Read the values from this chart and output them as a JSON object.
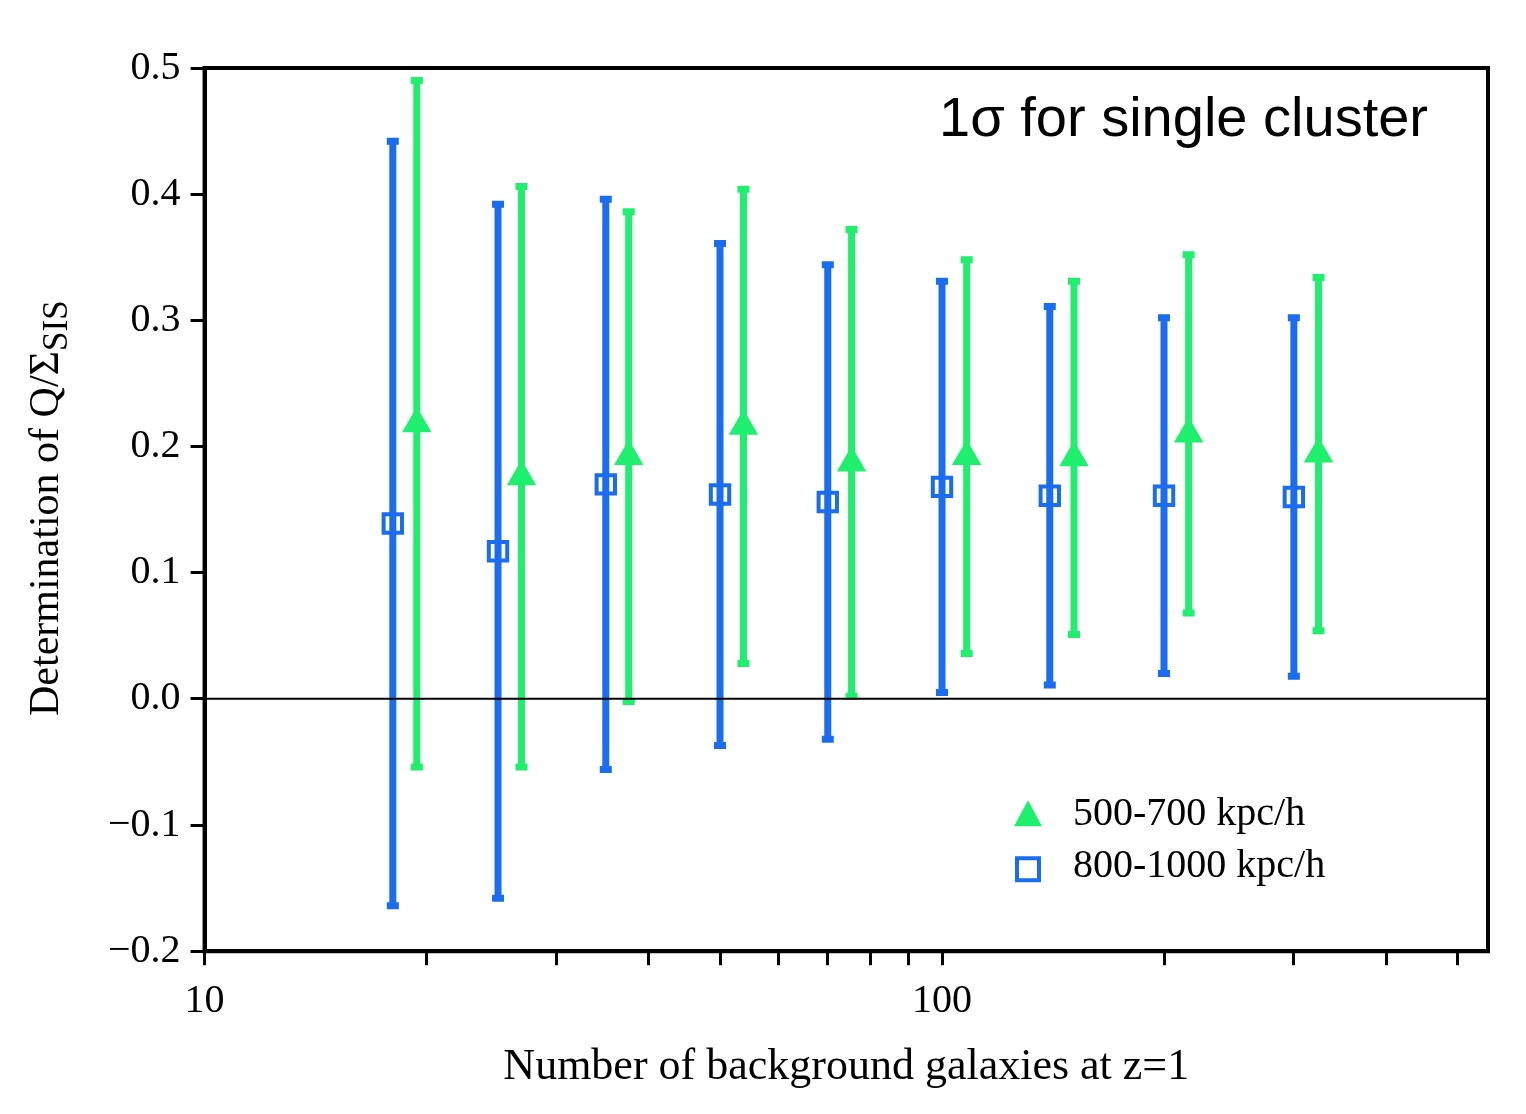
{
  "chart_data": {
    "type": "scatter",
    "xlabel": "Number of background galaxies at z=1",
    "ylabel": "Determination of Q/Σ$_{SIS}$",
    "log": "x",
    "xlim": [
      10,
      550
    ],
    "ylim": [
      -0.2,
      0.5
    ],
    "xticks": [
      10,
      {
        "value": 20,
        "label": null
      },
      {
        "value": 30,
        "label": null
      },
      {
        "value": 40,
        "label": null
      },
      {
        "value": 50,
        "label": null
      },
      {
        "value": 60,
        "label": null
      },
      {
        "value": 70,
        "label": null
      },
      {
        "value": 80,
        "label": null
      },
      {
        "value": 90,
        "label": null
      },
      100,
      {
        "value": 200,
        "label": null
      },
      {
        "value": 300,
        "label": null
      },
      {
        "value": 400,
        "label": null
      },
      {
        "value": 500,
        "label": null
      }
    ],
    "yticks": [
      {
        "value": -0.2,
        "label": "−0.2"
      },
      {
        "value": -0.1,
        "label": "−0.1"
      },
      {
        "value": 0,
        "label": "0.0"
      },
      0.1,
      0.2,
      0.3,
      0.4,
      0.5
    ],
    "grid": false,
    "legend": "bottom right",
    "annotations": [
      "1σ for single cluster"
    ],
    "ref_lines": [
      {
        "axis": "y",
        "value": 0,
        "color": "#000000"
      }
    ],
    "series": [
      {
        "name": "500-700 kpc/h",
        "color": "#1ef06e",
        "marker": "triangle",
        "x": [
          19.4,
          26.9,
          37.6,
          53.8,
          75.4,
          108,
          151,
          216,
          324
        ],
        "values": [
          0.218,
          0.176,
          0.192,
          0.216,
          0.187,
          0.192,
          0.191,
          0.21,
          0.194
        ],
        "errors": [
          0.272,
          0.23,
          0.194,
          0.188,
          0.185,
          0.156,
          0.14,
          0.142,
          0.14
        ]
      },
      {
        "name": "800-1000 kpc/h",
        "color": "#1a6cf0",
        "marker": "square",
        "x": [
          18,
          25,
          35,
          50,
          70,
          100,
          140,
          200,
          300
        ],
        "values": [
          0.139,
          0.117,
          0.17,
          0.162,
          0.156,
          0.168,
          0.161,
          0.161,
          0.16
        ],
        "errors": [
          0.303,
          0.275,
          0.226,
          0.199,
          0.188,
          0.163,
          0.15,
          0.141,
          0.142
        ]
      }
    ]
  }
}
